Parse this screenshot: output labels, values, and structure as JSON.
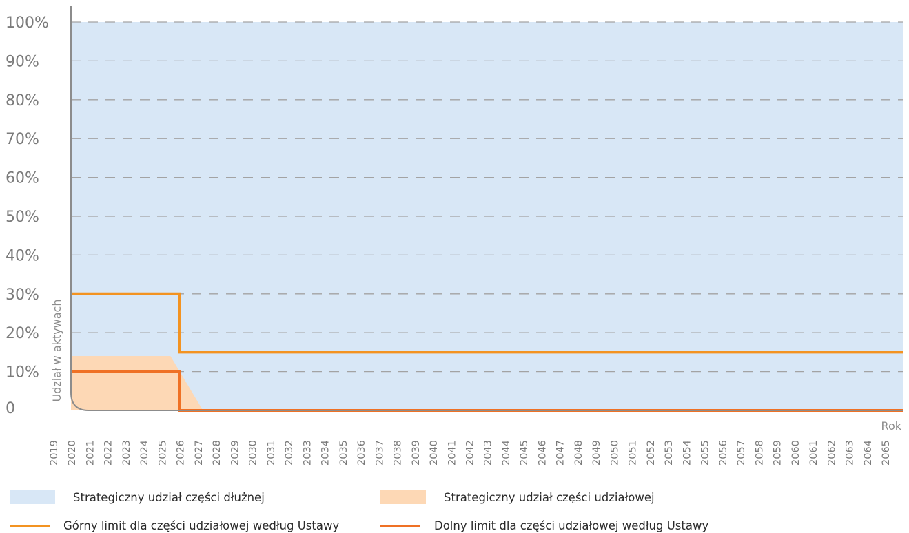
{
  "chart_data": {
    "type": "area",
    "xlabel": "Rok",
    "ylabel": "Udział w aktywach",
    "y_tick_labels": [
      "0",
      "10%",
      "20%",
      "30%",
      "40%",
      "50%",
      "60%",
      "70%",
      "80%",
      "90%",
      "100%"
    ],
    "ylim": [
      0,
      100
    ],
    "grid": true,
    "legend_position": "bottom",
    "x": [
      2019,
      2020,
      2021,
      2022,
      2023,
      2024,
      2025,
      2026,
      2027,
      2028,
      2029,
      2030,
      2031,
      2032,
      2033,
      2034,
      2035,
      2036,
      2037,
      2038,
      2039,
      2040,
      2041,
      2042,
      2043,
      2044,
      2045,
      2046,
      2047,
      2048,
      2049,
      2050,
      2051,
      2052,
      2053,
      2054,
      2055,
      2056,
      2057,
      2058,
      2059,
      2060,
      2061,
      2062,
      2063,
      2064,
      2065
    ],
    "series": [
      {
        "name": "Strategiczny udział części dłużnej",
        "kind": "area",
        "color": "#d8e7f6",
        "points": [
          [
            2019,
            100
          ],
          [
            2065,
            100
          ]
        ]
      },
      {
        "name": "Strategiczny udział części udziałowej",
        "kind": "area",
        "color": "#fdd8b5",
        "points": [
          [
            2019,
            14
          ],
          [
            2024.5,
            14
          ],
          [
            2026.3,
            0
          ]
        ]
      },
      {
        "name": "Górny limit dla części udziałowej według Ustawy",
        "kind": "step-line",
        "color": "#f39321",
        "points": [
          [
            2019,
            30
          ],
          [
            2025,
            30
          ],
          [
            2025,
            15
          ],
          [
            2065,
            15
          ]
        ]
      },
      {
        "name": "Dolny limit dla części udziałowej według Ustawy",
        "kind": "step-line",
        "color": "#ef7125",
        "points": [
          [
            2019,
            10
          ],
          [
            2025,
            10
          ],
          [
            2025,
            0
          ],
          [
            2065,
            0
          ]
        ]
      }
    ]
  }
}
